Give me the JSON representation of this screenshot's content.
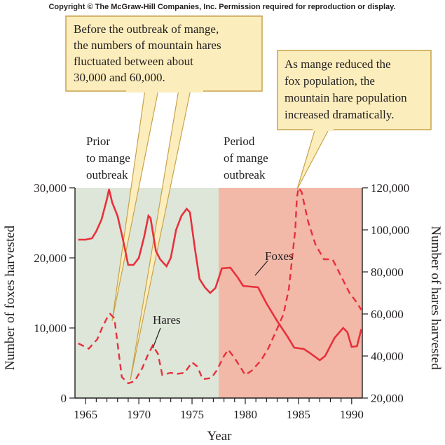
{
  "copyright": "Copyright © The McGraw-Hill Companies, Inc. Permission required for reproduction or display.",
  "colors": {
    "line": "#e8303d",
    "prior_bg": "#dde6d8",
    "mange_bg": "#f2b9a8",
    "callout_fill": "#fcedbd",
    "callout_stroke": "#c8a24a",
    "ink": "#231f20"
  },
  "callouts": {
    "left": [
      "Before the outbreak of mange,",
      "the numbers of mountain hares",
      "fluctuated between about",
      "30,000 and 60,000."
    ],
    "right": [
      "As mange reduced the",
      "fox population, the",
      "mountain hare population",
      "increased dramatically."
    ]
  },
  "periods": {
    "prior": [
      "Prior",
      "to mange",
      "outbreak"
    ],
    "mange": [
      "Period",
      "of mange",
      "outbreak"
    ]
  },
  "chart_data": {
    "type": "line",
    "x_label": "Year",
    "y_label_left": "Number of foxes harvested",
    "y_label_right": "Number of hares harvested",
    "x_range": [
      1964,
      1991
    ],
    "y_left_range": [
      0,
      30000
    ],
    "y_right_range": [
      20000,
      120000
    ],
    "x_ticks": [
      1965,
      1970,
      1975,
      1980,
      1985,
      1990
    ],
    "x_tick_labels": [
      "1965",
      "1970",
      "1975",
      "1980",
      "1985",
      "1990"
    ],
    "y_left_ticks": [
      0,
      10000,
      20000,
      30000
    ],
    "y_left_tick_labels": [
      "0",
      "10,000",
      "20,000",
      "30,000"
    ],
    "y_right_ticks": [
      20000,
      40000,
      60000,
      80000,
      100000,
      120000
    ],
    "y_right_tick_labels": [
      "20,000",
      "40,000",
      "60,000",
      "80,000",
      "100,000",
      "120,000"
    ],
    "regions": [
      {
        "name": "Prior to mange outbreak",
        "start": 1964,
        "end": 1977.5
      },
      {
        "name": "Period of mange outbreak",
        "start": 1977.5,
        "end": 1991
      }
    ],
    "series": [
      {
        "name": "Foxes",
        "axis": "left",
        "style": "solid",
        "points": [
          [
            1964.3,
            22600
          ],
          [
            1965,
            22600
          ],
          [
            1965.6,
            22800
          ],
          [
            1966,
            23800
          ],
          [
            1966.5,
            25500
          ],
          [
            1967,
            28400
          ],
          [
            1967.2,
            29800
          ],
          [
            1967.5,
            27900
          ],
          [
            1968,
            26000
          ],
          [
            1968.5,
            22700
          ],
          [
            1969,
            19000
          ],
          [
            1969.5,
            19000
          ],
          [
            1970,
            20000
          ],
          [
            1970.5,
            23000
          ],
          [
            1970.9,
            26000
          ],
          [
            1971.1,
            25700
          ],
          [
            1971.6,
            21000
          ],
          [
            1972,
            19800
          ],
          [
            1972.6,
            18800
          ],
          [
            1973,
            20000
          ],
          [
            1973.5,
            24000
          ],
          [
            1974,
            26000
          ],
          [
            1974.5,
            27000
          ],
          [
            1974.8,
            26500
          ],
          [
            1975.3,
            21000
          ],
          [
            1975.7,
            17000
          ],
          [
            1976.2,
            15800
          ],
          [
            1976.7,
            15000
          ],
          [
            1977.2,
            15700
          ],
          [
            1977.8,
            18500
          ],
          [
            1978.6,
            18600
          ],
          [
            1979.3,
            17200
          ],
          [
            1979.8,
            16000
          ],
          [
            1980.5,
            15900
          ],
          [
            1981.2,
            15800
          ],
          [
            1982,
            13500
          ],
          [
            1983,
            11000
          ],
          [
            1984,
            8700
          ],
          [
            1984.6,
            7200
          ],
          [
            1985.5,
            7000
          ],
          [
            1986,
            6500
          ],
          [
            1987,
            5400
          ],
          [
            1987.5,
            6000
          ],
          [
            1988.4,
            8600
          ],
          [
            1989.2,
            10000
          ],
          [
            1989.6,
            9400
          ],
          [
            1990,
            7300
          ],
          [
            1990.5,
            7400
          ],
          [
            1990.9,
            9800
          ]
        ]
      },
      {
        "name": "Hares",
        "axis": "right",
        "style": "dashed",
        "points": [
          [
            1964.3,
            46000
          ],
          [
            1965.3,
            43500
          ],
          [
            1966.1,
            48000
          ],
          [
            1966.6,
            54000
          ],
          [
            1967,
            58000
          ],
          [
            1967.3,
            60000
          ],
          [
            1967.7,
            58000
          ],
          [
            1968,
            46000
          ],
          [
            1968.4,
            30000
          ],
          [
            1969,
            27000
          ],
          [
            1969.6,
            28000
          ],
          [
            1970.3,
            34000
          ],
          [
            1970.8,
            40000
          ],
          [
            1971.3,
            45000
          ],
          [
            1971.8,
            41000
          ],
          [
            1972.2,
            31000
          ],
          [
            1973,
            32000
          ],
          [
            1973.6,
            31500
          ],
          [
            1974.3,
            32000
          ],
          [
            1975,
            37000
          ],
          [
            1975.5,
            35000
          ],
          [
            1976,
            29000
          ],
          [
            1976.8,
            29500
          ],
          [
            1977.3,
            33000
          ],
          [
            1978,
            40000
          ],
          [
            1978.4,
            43000
          ],
          [
            1979,
            39000
          ],
          [
            1980,
            31000
          ],
          [
            1980.6,
            33000
          ],
          [
            1981.5,
            38000
          ],
          [
            1982.2,
            44000
          ],
          [
            1983,
            53000
          ],
          [
            1983.6,
            60000
          ],
          [
            1984.1,
            72000
          ],
          [
            1984.7,
            100000
          ],
          [
            1984.85,
            115000
          ],
          [
            1985,
            120000
          ],
          [
            1985.3,
            118000
          ],
          [
            1985.9,
            104000
          ],
          [
            1986.6,
            93000
          ],
          [
            1987.4,
            86000
          ],
          [
            1988.2,
            86000
          ],
          [
            1989,
            78000
          ],
          [
            1989.8,
            70000
          ],
          [
            1990.4,
            66000
          ],
          [
            1990.9,
            62000
          ]
        ]
      }
    ],
    "series_labels": {
      "foxes": "Foxes",
      "hares": "Hares"
    }
  }
}
